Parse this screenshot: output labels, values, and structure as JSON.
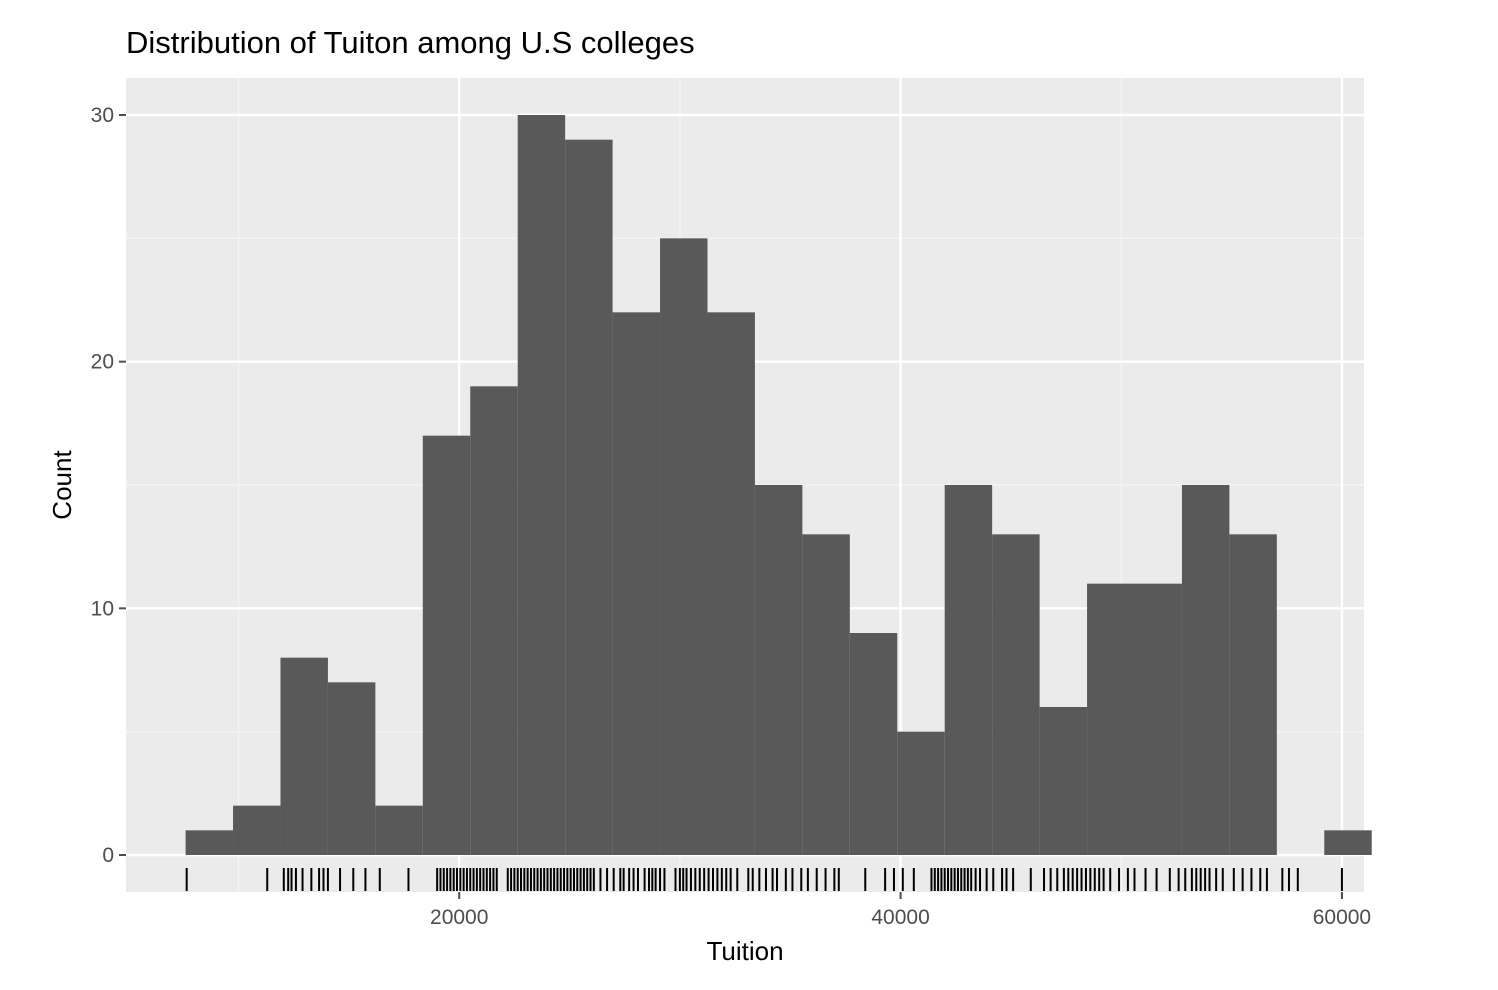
{
  "chart_data": {
    "type": "bar",
    "subtype": "histogram",
    "title": "Distribution of Tuiton among U.S colleges",
    "xlabel": "Tuition",
    "ylabel": "Count",
    "xlim": [
      4900,
      61000
    ],
    "ylim": [
      -1.5,
      31.5
    ],
    "x_ticks": [
      20000,
      40000,
      60000
    ],
    "x_tick_labels": [
      "20000",
      "40000",
      "60000"
    ],
    "y_ticks": [
      0,
      10,
      20,
      30
    ],
    "y_tick_labels": [
      "0",
      "10",
      "20",
      "30"
    ],
    "grid": true,
    "legend": "none",
    "bin_width": 2150,
    "first_bin_start": 7600,
    "counts": [
      1,
      2,
      8,
      7,
      2,
      17,
      19,
      30,
      29,
      22,
      25,
      22,
      15,
      13,
      9,
      5,
      15,
      13,
      6,
      11,
      11,
      15,
      13,
      0,
      1
    ],
    "rug_x": [
      7650,
      11300,
      12050,
      12250,
      12400,
      12600,
      12900,
      13300,
      13650,
      13850,
      14050,
      14600,
      15200,
      15750,
      16400,
      17700,
      19000,
      19150,
      19300,
      19450,
      19600,
      19750,
      19900,
      20050,
      20200,
      20350,
      20500,
      20650,
      20800,
      20950,
      21100,
      21250,
      21400,
      21550,
      21700,
      22200,
      22350,
      22500,
      22650,
      22800,
      22950,
      23100,
      23250,
      23400,
      23550,
      23700,
      23850,
      24000,
      24150,
      24300,
      24450,
      24600,
      24750,
      24900,
      25050,
      25200,
      25350,
      25500,
      25650,
      25800,
      25950,
      26100,
      26400,
      26700,
      27000,
      27300,
      27450,
      27700,
      27900,
      28100,
      28400,
      28600,
      28750,
      28900,
      29100,
      29300,
      29800,
      30000,
      30150,
      30300,
      30500,
      30700,
      30900,
      31100,
      31300,
      31500,
      31700,
      31900,
      32100,
      32300,
      32600,
      33100,
      33300,
      33600,
      33900,
      34200,
      34400,
      34800,
      35100,
      35500,
      35800,
      36200,
      36600,
      37000,
      37200,
      38400,
      39300,
      39700,
      40100,
      40600,
      41400,
      41550,
      41700,
      41850,
      42000,
      42150,
      42300,
      42450,
      42600,
      42750,
      42900,
      43050,
      43200,
      43400,
      43600,
      43900,
      44200,
      44600,
      44800,
      45100,
      45900,
      46500,
      46800,
      47100,
      47400,
      47600,
      47800,
      48000,
      48200,
      48400,
      48600,
      48800,
      49000,
      49200,
      49500,
      49900,
      50300,
      50600,
      51100,
      51600,
      52200,
      52600,
      52900,
      53200,
      53400,
      53600,
      53800,
      54000,
      54300,
      54600,
      55100,
      55500,
      55900,
      56300,
      56600,
      57300,
      57600,
      58000,
      60000
    ],
    "colors": {
      "bar": "#595959",
      "panel": "#ebebeb",
      "grid_major": "#ffffff",
      "grid_minor": "#f5f5f5",
      "rug": "#000000",
      "tick": "#4d4d4d"
    }
  }
}
